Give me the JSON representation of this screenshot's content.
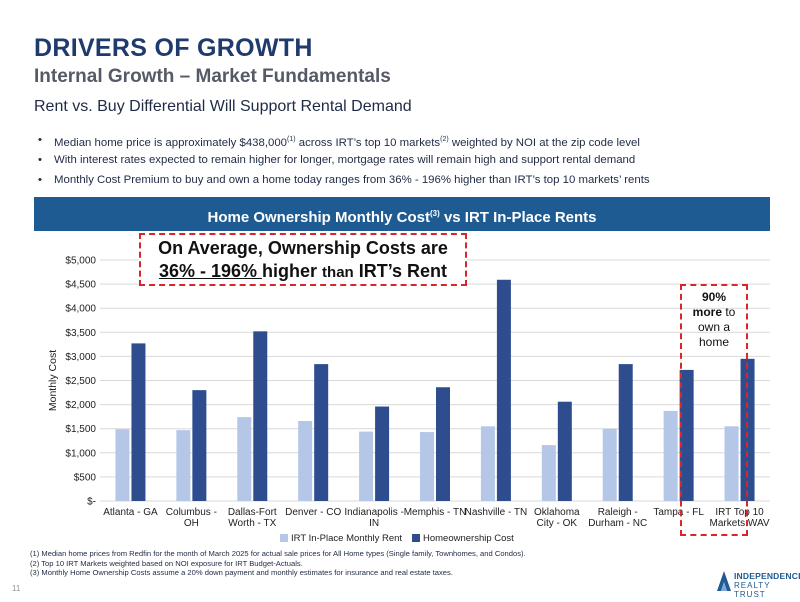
{
  "header": {
    "title": "DRIVERS OF GROWTH",
    "subtitle": "Internal Growth – Market Fundamentals",
    "subhead": "Rent vs. Buy Differential Will Support Rental Demand"
  },
  "bullets": [
    {
      "text_a": "Median home price is approximately $438,000",
      "sup_a": "(1)",
      "text_b": " across IRT’s top 10 markets",
      "sup_b": "(2)",
      "text_c": " weighted by NOI at the zip code level"
    },
    {
      "text": "With interest rates expected to remain higher for longer, mortgage rates will remain high and support rental demand"
    },
    {
      "text": "Monthly Cost Premium to buy and own a home today ranges from 36% - 196% higher than IRT’s top 10 markets’ rents"
    }
  ],
  "banner": {
    "text_a": "Home Ownership Monthly Cost",
    "sup": "(3)",
    "text_b": " vs IRT In-Place Rents"
  },
  "callout": {
    "line1": "On Average, Ownership Costs are",
    "pct": "36% - 196% ",
    "mid": "higher ",
    "than": "than",
    "end": " IRT’s Rent"
  },
  "wav_note": {
    "pct": "90%",
    "more": "more",
    "rest": " to own a home"
  },
  "chart_data": {
    "type": "bar",
    "ylabel": "Monthly Cost",
    "ylim": [
      0,
      5000
    ],
    "ytick_values": [
      0,
      500,
      1000,
      1500,
      2000,
      2500,
      3000,
      3500,
      4000,
      4500,
      5000
    ],
    "ytick_labels": [
      "$-",
      "$500",
      "$1,000",
      "$1,500",
      "$2,000",
      "$2,500",
      "$3,000",
      "$3,500",
      "$4,000",
      "$4,500",
      "$5,000"
    ],
    "categories": [
      [
        "Atlanta - GA"
      ],
      [
        "Columbus -",
        "OH"
      ],
      [
        "Dallas-Fort",
        "Worth - TX"
      ],
      [
        "Denver - CO"
      ],
      [
        "Indianapolis -",
        "IN"
      ],
      [
        "Memphis - TN"
      ],
      [
        "Nashville - TN"
      ],
      [
        "Oklahoma",
        "City - OK"
      ],
      [
        "Raleigh -",
        "Durham - NC"
      ],
      [
        "Tampa - FL"
      ],
      [
        "IRT Top 10",
        "Markets WAV"
      ]
    ],
    "series": [
      {
        "name": "IRT In-Place Monthly Rent",
        "color": "#b4c7e7",
        "values": [
          1490,
          1470,
          1740,
          1660,
          1440,
          1430,
          1550,
          1160,
          1500,
          1870,
          1550
        ]
      },
      {
        "name": "Homeownership Cost",
        "color": "#2e4d8f",
        "values": [
          3270,
          2300,
          3520,
          2840,
          1960,
          2360,
          4590,
          2060,
          2840,
          2720,
          2950
        ]
      }
    ],
    "gridline_color": "#d9d9d9"
  },
  "footnotes": [
    "(1)  Median home prices from Redfin for the month of March 2025 for actual sale prices for All Home types (Single family, Townhomes, and Condos).",
    "(2)  Top 10 IRT Markets weighted based on NOI exposure for IRT Budget-Actuals.",
    "(3)  Monthly Home Ownership Costs assume a 20% down payment and monthly estimates for insurance and real estate taxes."
  ],
  "page_number": "11",
  "logo": {
    "line1": "INDEPENDENCE",
    "line2": "REALTY TRUST"
  }
}
